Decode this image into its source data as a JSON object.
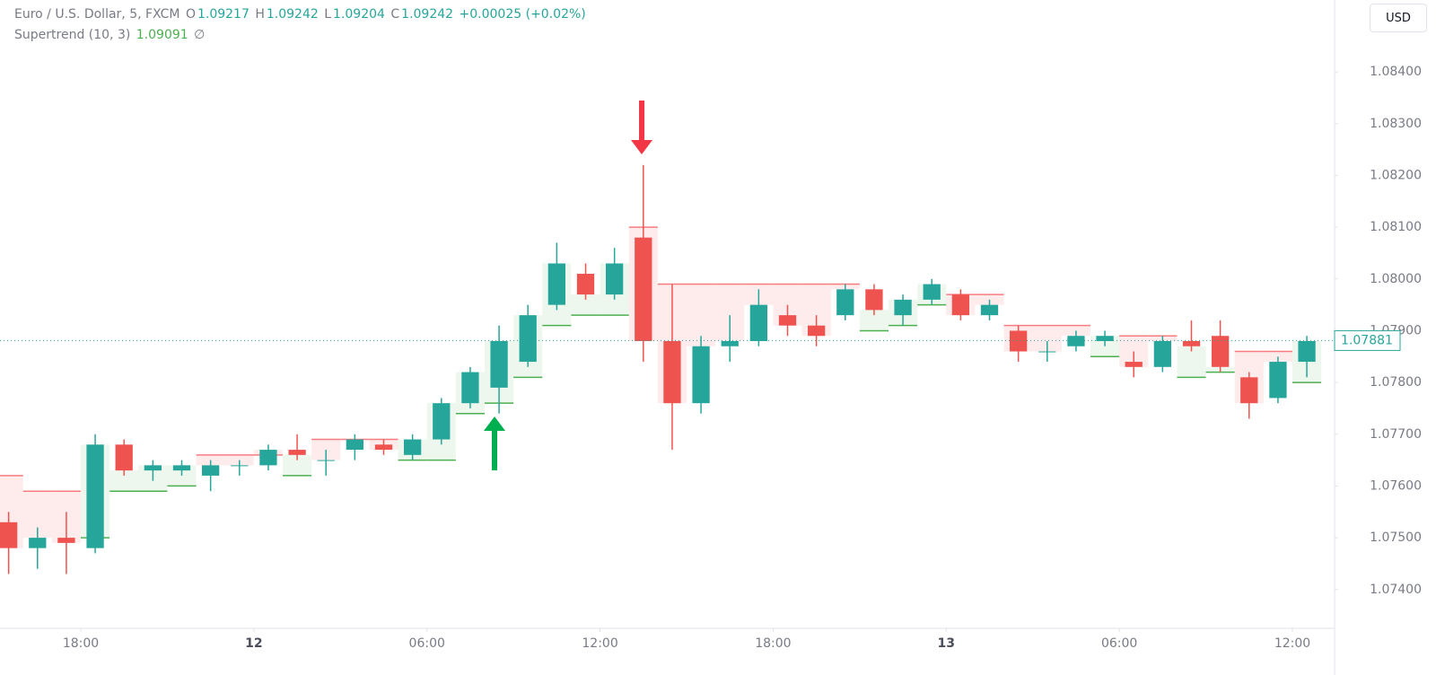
{
  "chart_data": {
    "type": "candlestick",
    "title": "Euro / U.S. Dollar, 5, FXCM",
    "ohlc_legend": [
      {
        "label": "O",
        "value": 1.09217
      },
      {
        "label": "H",
        "value": 1.09242
      },
      {
        "label": "L",
        "value": 1.09204
      },
      {
        "label": "C",
        "value": 1.09242
      }
    ],
    "change": "+0.00025 (+0.02%)",
    "indicator": {
      "label": "Supertrend (10, 3)",
      "value": 1.09091,
      "status": "∅"
    },
    "currency": "USD",
    "last_price": 1.07881,
    "up_color": "#26a69a",
    "down_color": "#ef5350",
    "x": [
      15.5,
      16.5,
      17.5,
      18.5,
      19.5,
      20.5,
      21.5,
      22.5,
      23.5,
      24.5,
      25.5,
      26.5,
      27.5,
      28.5,
      29.5,
      30.5,
      31.5,
      32.5,
      33.5,
      34.5,
      35.5,
      36.5,
      37.5,
      38.5,
      39.5,
      40.5,
      41.5,
      42.5,
      43.5,
      44.5,
      45.5,
      46.5,
      47.5,
      48.5,
      49.5,
      50.5,
      51.5,
      52.5,
      53.5,
      54.5,
      55.5,
      56.5,
      57.5,
      58.5,
      59.5,
      60.5
    ],
    "open": [
      1.0753,
      1.0748,
      1.075,
      1.0748,
      1.0768,
      1.0763,
      1.0763,
      1.0762,
      1.0764,
      1.0764,
      1.0767,
      1.0765,
      1.0767,
      1.0768,
      1.0766,
      1.0769,
      1.0776,
      1.0779,
      1.0784,
      1.0795,
      1.0801,
      1.0797,
      1.0808,
      1.0788,
      1.0776,
      1.0787,
      1.0788,
      1.0793,
      1.0791,
      1.0793,
      1.0798,
      1.0793,
      1.0796,
      1.0797,
      1.0793,
      1.079,
      1.0786,
      1.0787,
      1.0788,
      1.0784,
      1.0783,
      1.0788,
      1.0789,
      1.0781,
      1.0777,
      1.0784
    ],
    "high": [
      1.0755,
      1.0752,
      1.0755,
      1.077,
      1.0769,
      1.0765,
      1.0765,
      1.0765,
      1.0765,
      1.0768,
      1.077,
      1.0767,
      1.077,
      1.0769,
      1.077,
      1.0777,
      1.0783,
      1.0791,
      1.0795,
      1.0807,
      1.0803,
      1.0806,
      1.0822,
      1.0799,
      1.0789,
      1.0793,
      1.0798,
      1.0795,
      1.0793,
      1.0799,
      1.0799,
      1.0797,
      1.08,
      1.0798,
      1.0796,
      1.0791,
      1.0788,
      1.079,
      1.079,
      1.0786,
      1.0789,
      1.0792,
      1.0792,
      1.0782,
      1.0785,
      1.0789
    ],
    "low": [
      1.0743,
      1.0744,
      1.0743,
      1.0747,
      1.0762,
      1.0761,
      1.0762,
      1.0759,
      1.0762,
      1.0763,
      1.0765,
      1.0762,
      1.0765,
      1.0766,
      1.0765,
      1.0768,
      1.0775,
      1.0774,
      1.0783,
      1.0794,
      1.0796,
      1.0796,
      1.0784,
      1.0767,
      1.0774,
      1.0784,
      1.0787,
      1.0789,
      1.0787,
      1.0792,
      1.0793,
      1.0791,
      1.0795,
      1.0792,
      1.0792,
      1.0784,
      1.0784,
      1.0786,
      1.0787,
      1.0781,
      1.0782,
      1.0786,
      1.0782,
      1.0773,
      1.0776,
      1.0781
    ],
    "close": [
      1.0748,
      1.075,
      1.0749,
      1.0768,
      1.0763,
      1.0764,
      1.0764,
      1.0764,
      1.0764,
      1.0767,
      1.0766,
      1.0765,
      1.0769,
      1.0767,
      1.0769,
      1.0776,
      1.0782,
      1.0788,
      1.0793,
      1.0803,
      1.0797,
      1.0803,
      1.0788,
      1.0776,
      1.0787,
      1.0788,
      1.0795,
      1.0791,
      1.0789,
      1.0798,
      1.0794,
      1.0796,
      1.0799,
      1.0793,
      1.0795,
      1.0786,
      1.0786,
      1.0789,
      1.0789,
      1.0783,
      1.0788,
      1.0787,
      1.0783,
      1.0776,
      1.0784,
      1.0788
    ],
    "supertrend_up": {
      "color": "#4caf50",
      "fill": "rgba(76,175,80,0.1)",
      "values": [
        null,
        null,
        null,
        1.075,
        1.0759,
        1.0759,
        1.076,
        null,
        null,
        null,
        1.0762,
        null,
        null,
        null,
        1.0765,
        1.0765,
        1.0774,
        1.0776,
        1.0781,
        1.0791,
        1.0793,
        1.0793,
        null,
        null,
        null,
        null,
        null,
        null,
        null,
        null,
        1.079,
        1.0791,
        1.0795,
        null,
        null,
        null,
        null,
        null,
        1.0785,
        null,
        null,
        1.0781,
        1.0782,
        null,
        null,
        1.078
      ]
    },
    "supertrend_down": {
      "color": "#f77c80",
      "fill": "rgba(247,124,128,0.15)",
      "values": [
        1.0762,
        1.0759,
        1.0759,
        null,
        null,
        null,
        null,
        1.0766,
        1.0766,
        1.0766,
        null,
        1.0769,
        1.0769,
        1.0769,
        null,
        null,
        null,
        null,
        null,
        null,
        null,
        null,
        1.081,
        1.0799,
        1.0799,
        1.0799,
        1.0799,
        1.0799,
        1.0799,
        1.0799,
        null,
        null,
        null,
        1.0797,
        1.0797,
        1.0791,
        1.0791,
        1.0791,
        null,
        1.0789,
        1.0789,
        null,
        null,
        1.0786,
        1.0786,
        null
      ]
    },
    "xlim": [
      15.2,
      61.4
    ],
    "xticks": [
      {
        "value": 18,
        "label": "18:00"
      },
      {
        "value": 24,
        "label": "12"
      },
      {
        "value": 30,
        "label": "06:00"
      },
      {
        "value": 36,
        "label": "12:00"
      },
      {
        "value": 42,
        "label": "18:00"
      },
      {
        "value": 48,
        "label": "13"
      },
      {
        "value": 54,
        "label": "06:00"
      },
      {
        "value": 60,
        "label": "12:00"
      }
    ],
    "ylim": [
      1.07325,
      1.08539
    ],
    "yticks": [
      {
        "value": 1.074,
        "label": "1.07400"
      },
      {
        "value": 1.075,
        "label": "1.07500"
      },
      {
        "value": 1.076,
        "label": "1.07600"
      },
      {
        "value": 1.077,
        "label": "1.07700"
      },
      {
        "value": 1.078,
        "label": "1.07800"
      },
      {
        "value": 1.079,
        "label": "1.07900"
      },
      {
        "value": 1.08,
        "label": "1.08000"
      },
      {
        "value": 1.081,
        "label": "1.08100"
      },
      {
        "value": 1.082,
        "label": "1.08200"
      },
      {
        "value": 1.083,
        "label": "1.08300"
      },
      {
        "value": 1.084,
        "label": "1.08400"
      }
    ]
  }
}
